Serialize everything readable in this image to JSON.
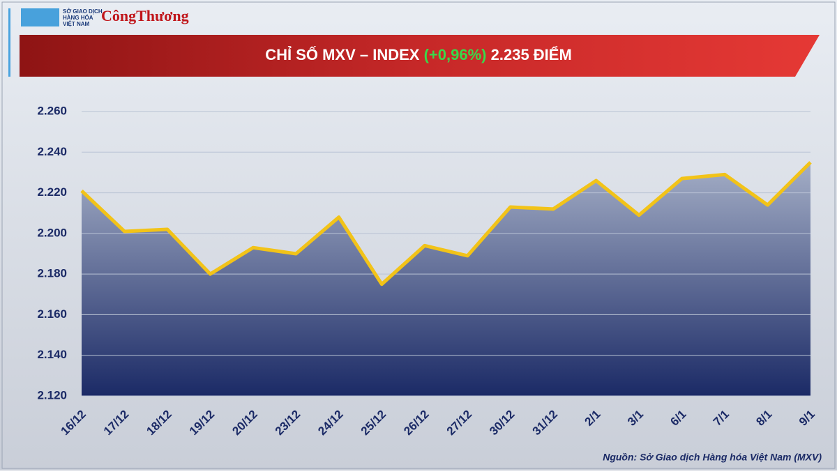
{
  "chart_data": {
    "type": "area-line",
    "title_parts": [
      "CHỈ SỐ MXV – INDEX",
      "(+0,96%)",
      "2.235 ĐIỂM"
    ],
    "title_colors": [
      "#ffffff",
      "#39d94a",
      "#ffffff"
    ],
    "logo_exchange": [
      "SỞ GIAO DỊCH",
      "HÀNG HÓA",
      "VIỆT NAM"
    ],
    "logo_newspaper": "CôngThương",
    "source": "Nguồn: Sở Giao dịch Hàng hóa Việt Nam (MXV)",
    "categories": [
      "16/12",
      "17/12",
      "18/12",
      "19/12",
      "20/12",
      "23/12",
      "24/12",
      "25/12",
      "26/12",
      "27/12",
      "30/12",
      "31/12",
      "2/1",
      "3/1",
      "6/1",
      "7/1",
      "8/1",
      "9/1"
    ],
    "values": [
      2221,
      2201,
      2202,
      2180,
      2193,
      2190,
      2208,
      2175,
      2194,
      2189,
      2213,
      2212,
      2226,
      2209,
      2227,
      2229,
      2214,
      2235
    ],
    "line_color": "#f2c318",
    "area_colors": [
      "#a4aec6",
      "#1b2a66"
    ],
    "ylim": [
      2120,
      2260
    ],
    "yticks": [
      {
        "value": 2120,
        "label": "2.120"
      },
      {
        "value": 2140,
        "label": "2.140"
      },
      {
        "value": 2160,
        "label": "2.160"
      },
      {
        "value": 2180,
        "label": "2.180"
      },
      {
        "value": 2200,
        "label": "2.200"
      },
      {
        "value": 2220,
        "label": "2.220"
      },
      {
        "value": 2240,
        "label": "2.240"
      },
      {
        "value": 2260,
        "label": "2.260"
      }
    ],
    "grid": true
  }
}
